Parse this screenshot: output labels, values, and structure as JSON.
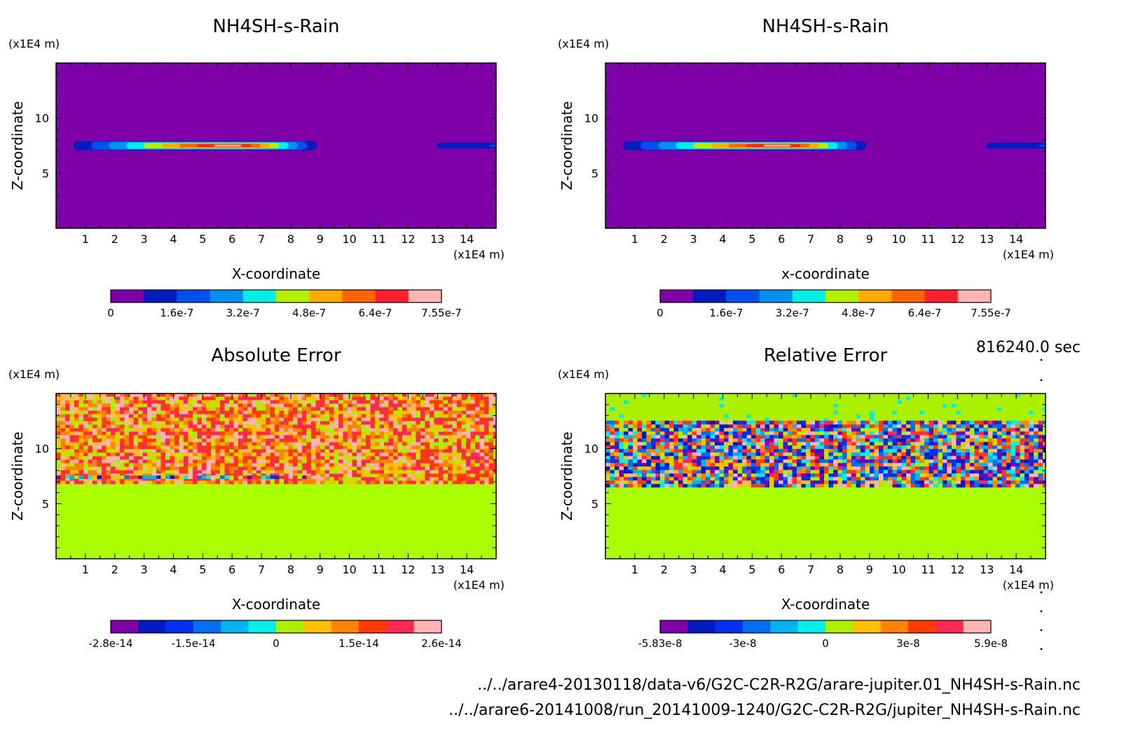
{
  "time_label": "816240.0 sec",
  "footer": {
    "file1": "../../arare4-20130118/data-v6/G2C-C2R-R2G/arare-jupiter.01_NH4SH-s-Rain.nc",
    "file2": "../../arare6-20141008/run_20141009-1240/G2C-C2R-R2G/jupiter_NH4SH-s-Rain.nc"
  },
  "chart_data": [
    {
      "type": "heatmap",
      "title": "NH4SH-s-Rain",
      "xlabel": "X-coordinate",
      "ylabel": "Z-coordinate",
      "x_unit": "(x1E4 m)",
      "y_unit": "(x1E4 m)",
      "xlim": [
        0,
        15
      ],
      "ylim": [
        0,
        15
      ],
      "x_ticks": [
        1,
        2,
        3,
        4,
        5,
        6,
        7,
        8,
        9,
        10,
        11,
        12,
        13,
        14
      ],
      "y_ticks": [
        5,
        10
      ],
      "background": "#7e00a8",
      "features": [
        {
          "kind": "layer",
          "z": 7.5,
          "x_start": 0,
          "x_end": 9.2,
          "peak": 7.55e-07,
          "peak_x": 6
        },
        {
          "kind": "layer",
          "z": 7.5,
          "x_start": 11.2,
          "x_end": 15,
          "peak": 1.6e-07,
          "peak_x": 15
        }
      ],
      "colorbar": {
        "colors": [
          "#7e00a8",
          "#001cc0",
          "#0050f0",
          "#0090f0",
          "#00f0e8",
          "#b4f000",
          "#ffaa00",
          "#ff6400",
          "#ff1e2d",
          "#ffb4b4"
        ],
        "tick_labels": [
          "0",
          "1.6e-7",
          "3.2e-7",
          "4.8e-7",
          "6.4e-7",
          "7.55e-7"
        ],
        "range": [
          0,
          7.55e-07
        ]
      }
    },
    {
      "type": "heatmap",
      "title": "NH4SH-s-Rain",
      "xlabel": "x-coordinate",
      "ylabel": "Z-coordinate",
      "x_unit": "(x1E4 m)",
      "y_unit": "(x1E4 m)",
      "xlim": [
        0,
        15
      ],
      "ylim": [
        0,
        15
      ],
      "x_ticks": [
        1,
        2,
        3,
        4,
        5,
        6,
        7,
        8,
        9,
        10,
        11,
        12,
        13,
        14
      ],
      "y_ticks": [
        5,
        10
      ],
      "background": "#7e00a8",
      "features": [
        {
          "kind": "layer",
          "z": 7.5,
          "x_start": 0,
          "x_end": 9.2,
          "peak": 7.55e-07,
          "peak_x": 6
        },
        {
          "kind": "layer",
          "z": 7.5,
          "x_start": 11.2,
          "x_end": 15,
          "peak": 1.6e-07,
          "peak_x": 15
        }
      ],
      "colorbar": {
        "colors": [
          "#7e00a8",
          "#001cc0",
          "#0050f0",
          "#0090f0",
          "#00f0e8",
          "#b4f000",
          "#ffaa00",
          "#ff6400",
          "#ff1e2d",
          "#ffb4b4"
        ],
        "tick_labels": [
          "0",
          "1.6e-7",
          "3.2e-7",
          "4.8e-7",
          "6.4e-7",
          "7.55e-7"
        ],
        "range": [
          0,
          7.55e-07
        ]
      }
    },
    {
      "type": "heatmap",
      "title": "Absolute Error",
      "xlabel": "X-coordinate",
      "ylabel": "Z-coordinate",
      "x_unit": "(x1E4 m)",
      "y_unit": "(x1E4 m)",
      "xlim": [
        0,
        15
      ],
      "ylim": [
        0,
        15
      ],
      "x_ticks": [
        1,
        2,
        3,
        4,
        5,
        6,
        7,
        8,
        9,
        10,
        11,
        12,
        13,
        14
      ],
      "y_ticks": [
        5,
        10
      ],
      "background": "#aaff00",
      "features": [
        {
          "kind": "noise",
          "z_min": 6.8,
          "z_max": 15,
          "values": [
            0,
            2.6e-14
          ]
        },
        {
          "kind": "band",
          "z": 7.3,
          "x_start": 0,
          "x_end": 9,
          "values": [
            -2.8e-14,
            2.6e-14
          ]
        }
      ],
      "colorbar": {
        "colors": [
          "#7e00a8",
          "#001cc0",
          "#0030f0",
          "#0070f0",
          "#00b4f0",
          "#00f0e8",
          "#aaf000",
          "#ffc000",
          "#ff8200",
          "#ff3c00",
          "#ff2850",
          "#ffb4b4"
        ],
        "tick_labels": [
          "-2.8e-14",
          "-1.5e-14",
          "0",
          "1.5e-14",
          "2.6e-14"
        ],
        "range": [
          -2.8e-14,
          2.6e-14
        ]
      }
    },
    {
      "type": "heatmap",
      "title": "Relative Error",
      "xlabel": "X-coordinate",
      "ylabel": "Z-coordinate",
      "x_unit": "(x1E4 m)",
      "y_unit": "(x1E4 m)",
      "xlim": [
        0,
        15
      ],
      "ylim": [
        0,
        15
      ],
      "x_ticks": [
        1,
        2,
        3,
        4,
        5,
        6,
        7,
        8,
        9,
        10,
        11,
        12,
        13,
        14
      ],
      "y_ticks": [
        5,
        10
      ],
      "background": "#aaff00",
      "features": [
        {
          "kind": "noise",
          "z_min": 12.5,
          "z_max": 15,
          "values": [
            0,
            1e-08
          ]
        },
        {
          "kind": "noise",
          "z_min": 6.5,
          "z_max": 12.5,
          "values": [
            -5.83e-08,
            5.9e-08
          ]
        }
      ],
      "colorbar": {
        "colors": [
          "#7e00a8",
          "#001cc0",
          "#0030f0",
          "#0070f0",
          "#00b4f0",
          "#00f0e8",
          "#aaf000",
          "#ffc000",
          "#ff8200",
          "#ff3c00",
          "#ff2850",
          "#ffb4b4"
        ],
        "tick_labels": [
          "-5.83e-8",
          "-3e-8",
          "0",
          "3e-8",
          "5.9e-8"
        ],
        "range": [
          -5.83e-08,
          5.9e-08
        ]
      }
    }
  ]
}
